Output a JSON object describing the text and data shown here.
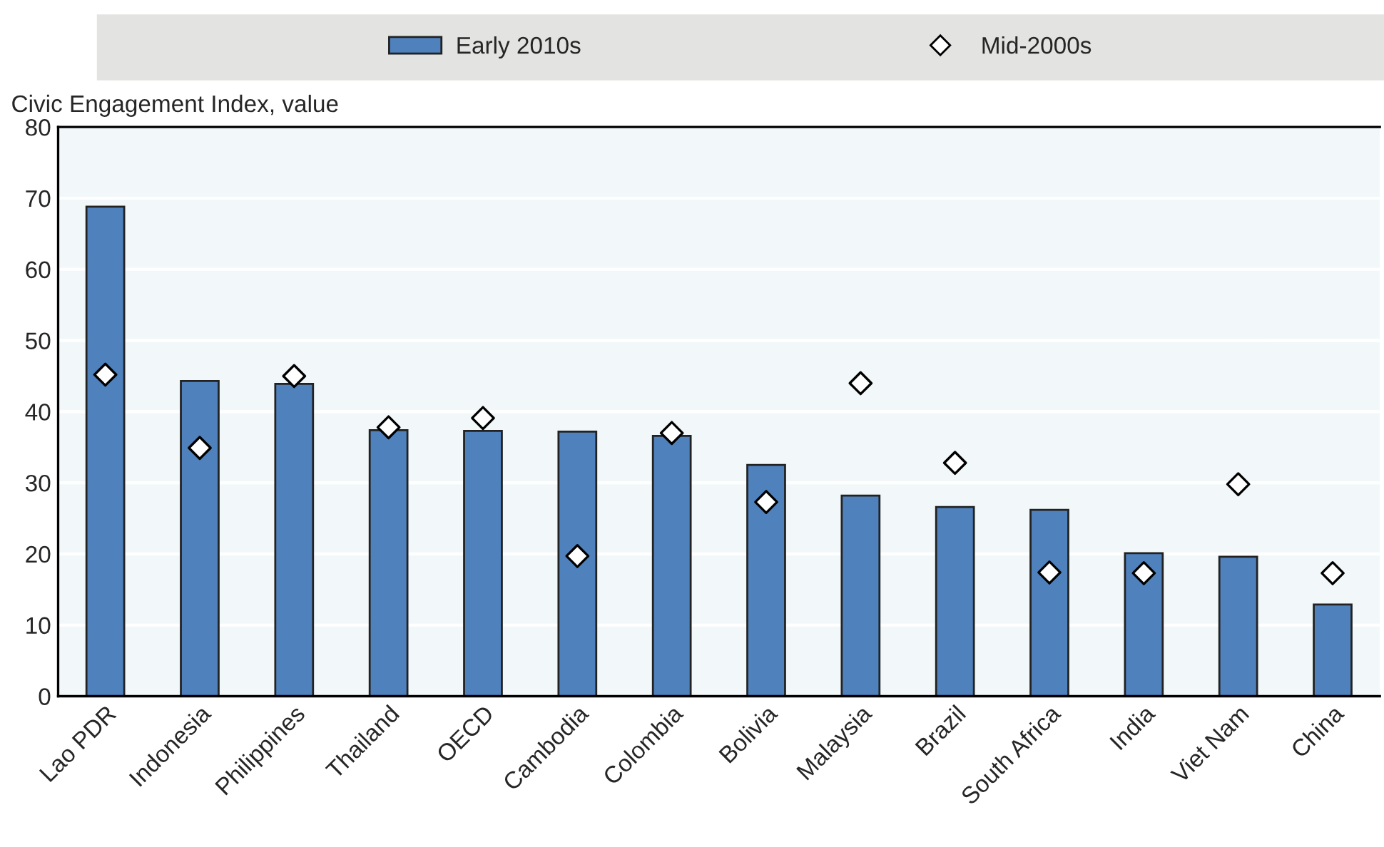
{
  "chart_data": {
    "type": "bar",
    "ylabel": "Civic Engagement Index, value",
    "categories": [
      "Lao PDR",
      "Indonesia",
      "Philippines",
      "Thailand",
      "OECD",
      "Cambodia",
      "Colombia",
      "Bolivia",
      "Malaysia",
      "Brazil",
      "South Africa",
      "India",
      "Viet Nam",
      "China"
    ],
    "series": [
      {
        "name": "Early 2010s",
        "color": "#4f81bd",
        "values": [
          68.8,
          44.3,
          43.9,
          37.4,
          37.3,
          37.2,
          36.6,
          32.5,
          28.2,
          26.6,
          26.2,
          20.1,
          19.6,
          12.9
        ]
      },
      {
        "name": "Mid-2000s",
        "type": "scatter",
        "color": "#ffffff",
        "marker": "diamond",
        "x": [
          "Lao PDR",
          "Indonesia",
          "Philippines",
          "Thailand",
          "OECD",
          "Cambodia",
          "Colombia",
          "Bolivia",
          "Malaysia",
          "Brazil",
          "South Africa",
          "India",
          "Viet Nam",
          "China"
        ],
        "values": [
          45.2,
          34.9,
          45.0,
          37.8,
          39.1,
          19.7,
          37.0,
          27.3,
          44.0,
          32.8,
          17.4,
          17.3,
          29.8,
          17.3
        ]
      }
    ],
    "ylim": [
      0,
      80
    ],
    "yticks": [
      0,
      10,
      20,
      30,
      40,
      50,
      60,
      70,
      80
    ],
    "grid": "y",
    "legend": "top"
  }
}
